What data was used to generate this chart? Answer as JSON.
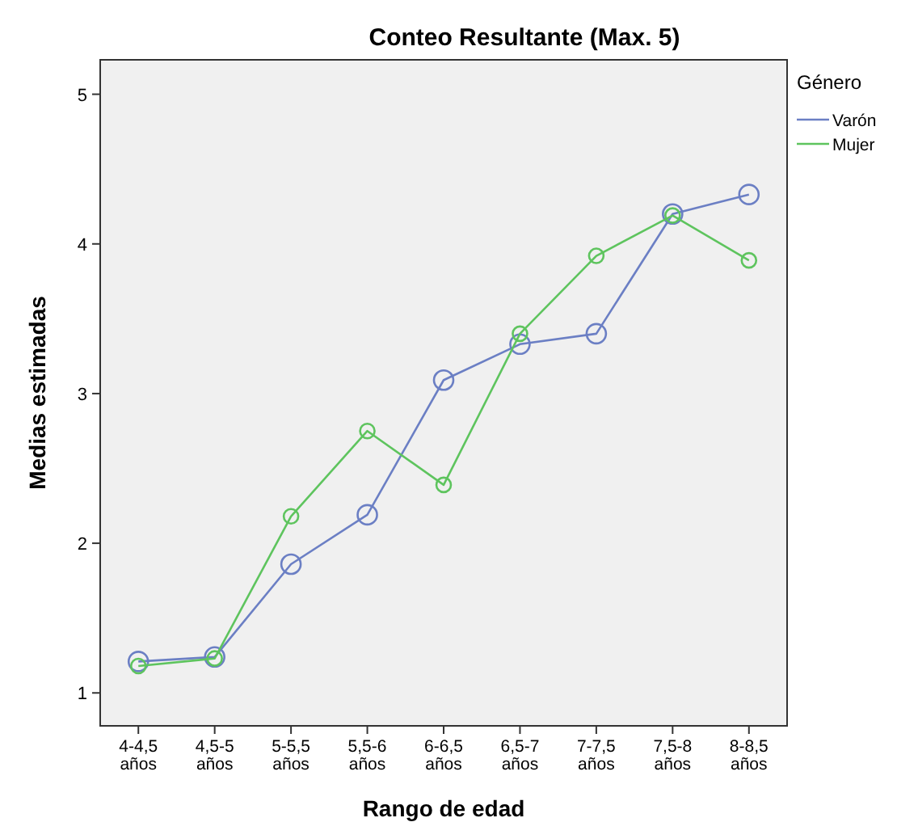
{
  "chart_data": {
    "type": "line",
    "title": "Conteo Resultante (Max. 5)",
    "xlabel": "Rango de edad",
    "ylabel": "Medias estimadas",
    "legend_title": "Género",
    "legend": "right",
    "marker": "circle",
    "grid": false,
    "categories": [
      "4-4,5 años",
      "4,5-5 años",
      "5-5,5 años",
      "5,5-6 años",
      "6-6,5 años",
      "6,5-7 años",
      "7-7,5 años",
      "7,5-8 años",
      "8-8,5 años"
    ],
    "ylim": [
      0.78,
      5.23
    ],
    "yticks": [
      1,
      2,
      3,
      4,
      5
    ],
    "series": [
      {
        "name": "Varón",
        "color": "#6b7fc4",
        "values": [
          1.21,
          1.24,
          1.86,
          2.19,
          3.09,
          3.33,
          3.4,
          4.2,
          4.33
        ]
      },
      {
        "name": "Mujer",
        "color": "#5ec45e",
        "values": [
          1.18,
          1.23,
          2.18,
          2.75,
          2.39,
          3.4,
          3.92,
          4.19,
          3.89
        ]
      }
    ]
  }
}
